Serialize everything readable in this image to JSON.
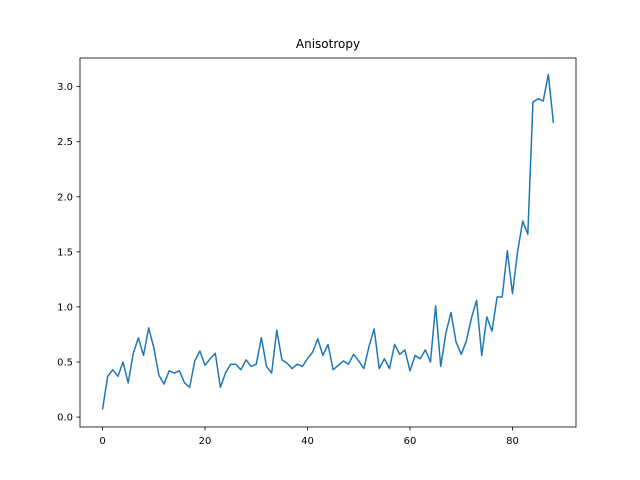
{
  "chart_data": {
    "type": "line",
    "title": "Anisotropy",
    "xlabel": "",
    "ylabel": "",
    "xlim": [
      -4.4,
      92.4
    ],
    "ylim": [
      -0.09,
      3.26
    ],
    "x_ticks": [
      0,
      20,
      40,
      60,
      80
    ],
    "y_ticks": [
      0.0,
      0.5,
      1.0,
      1.5,
      2.0,
      2.5,
      3.0
    ],
    "x_tick_labels": [
      "0",
      "20",
      "40",
      "60",
      "80"
    ],
    "y_tick_labels": [
      "0.0",
      "0.5",
      "1.0",
      "1.5",
      "2.0",
      "2.5",
      "3.0"
    ],
    "grid": false,
    "series": [
      {
        "color": "#1f77b4",
        "x": [
          0,
          1,
          2,
          3,
          4,
          5,
          6,
          7,
          8,
          9,
          10,
          11,
          12,
          13,
          14,
          15,
          16,
          17,
          18,
          19,
          20,
          21,
          22,
          23,
          24,
          25,
          26,
          27,
          28,
          29,
          30,
          31,
          32,
          33,
          34,
          35,
          36,
          37,
          38,
          39,
          40,
          41,
          42,
          43,
          44,
          45,
          46,
          47,
          48,
          49,
          50,
          51,
          52,
          53,
          54,
          55,
          56,
          57,
          58,
          59,
          60,
          61,
          62,
          63,
          64,
          65,
          66,
          67,
          68,
          69,
          70,
          71,
          72,
          73,
          74,
          75,
          76,
          77,
          78,
          79,
          80,
          81,
          82,
          83,
          84,
          85,
          86,
          87,
          88
        ],
        "y": [
          0.07,
          0.37,
          0.43,
          0.37,
          0.5,
          0.31,
          0.58,
          0.72,
          0.56,
          0.81,
          0.63,
          0.38,
          0.3,
          0.42,
          0.4,
          0.42,
          0.31,
          0.27,
          0.51,
          0.6,
          0.47,
          0.53,
          0.58,
          0.27,
          0.4,
          0.48,
          0.48,
          0.43,
          0.52,
          0.46,
          0.48,
          0.72,
          0.46,
          0.4,
          0.79,
          0.52,
          0.49,
          0.44,
          0.48,
          0.46,
          0.53,
          0.59,
          0.71,
          0.56,
          0.66,
          0.43,
          0.47,
          0.51,
          0.48,
          0.57,
          0.51,
          0.44,
          0.64,
          0.8,
          0.44,
          0.53,
          0.44,
          0.66,
          0.57,
          0.61,
          0.42,
          0.56,
          0.53,
          0.61,
          0.5,
          1.01,
          0.46,
          0.76,
          0.95,
          0.68,
          0.57,
          0.69,
          0.9,
          1.06,
          0.56,
          0.91,
          0.78,
          1.09,
          1.09,
          1.51,
          1.12,
          1.5,
          1.78,
          1.66,
          2.86,
          2.89,
          2.87,
          3.11,
          2.67
        ]
      }
    ]
  }
}
